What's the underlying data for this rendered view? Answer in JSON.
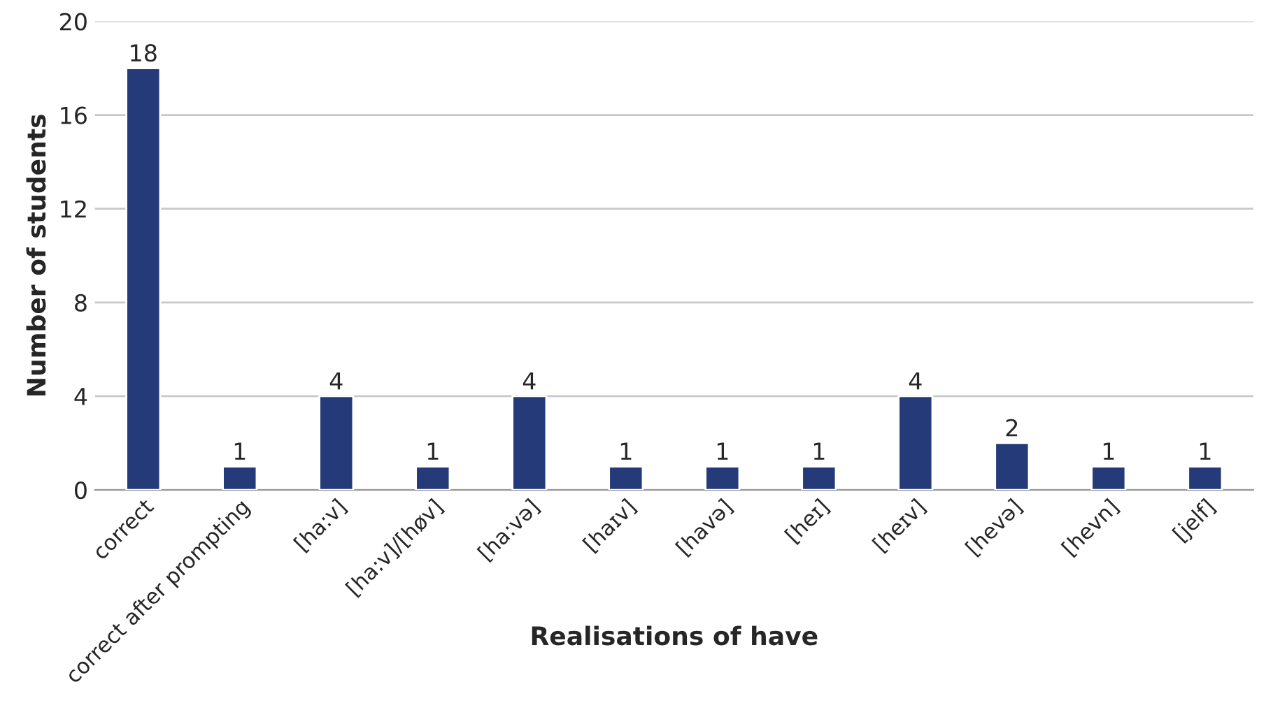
{
  "chart_data": {
    "type": "bar",
    "xlabel": "Realisations of have",
    "ylabel": "Number of students",
    "categories": [
      "correct",
      "correct after prompting",
      "[ha:v]",
      "[ha:v]/[høv]",
      "[ha:və]",
      "[haɪv]",
      "[havə]",
      "[heɪ]",
      "[heɪv]",
      "[hevə]",
      "[hevn]",
      "[jelf]"
    ],
    "values": [
      18,
      1,
      4,
      1,
      4,
      1,
      1,
      1,
      4,
      2,
      1,
      1
    ],
    "color": "#253a78",
    "ylim": [
      0,
      20
    ],
    "yticks": [
      0,
      4,
      8,
      12,
      16,
      20
    ],
    "grid": "y",
    "data_labels": true
  }
}
